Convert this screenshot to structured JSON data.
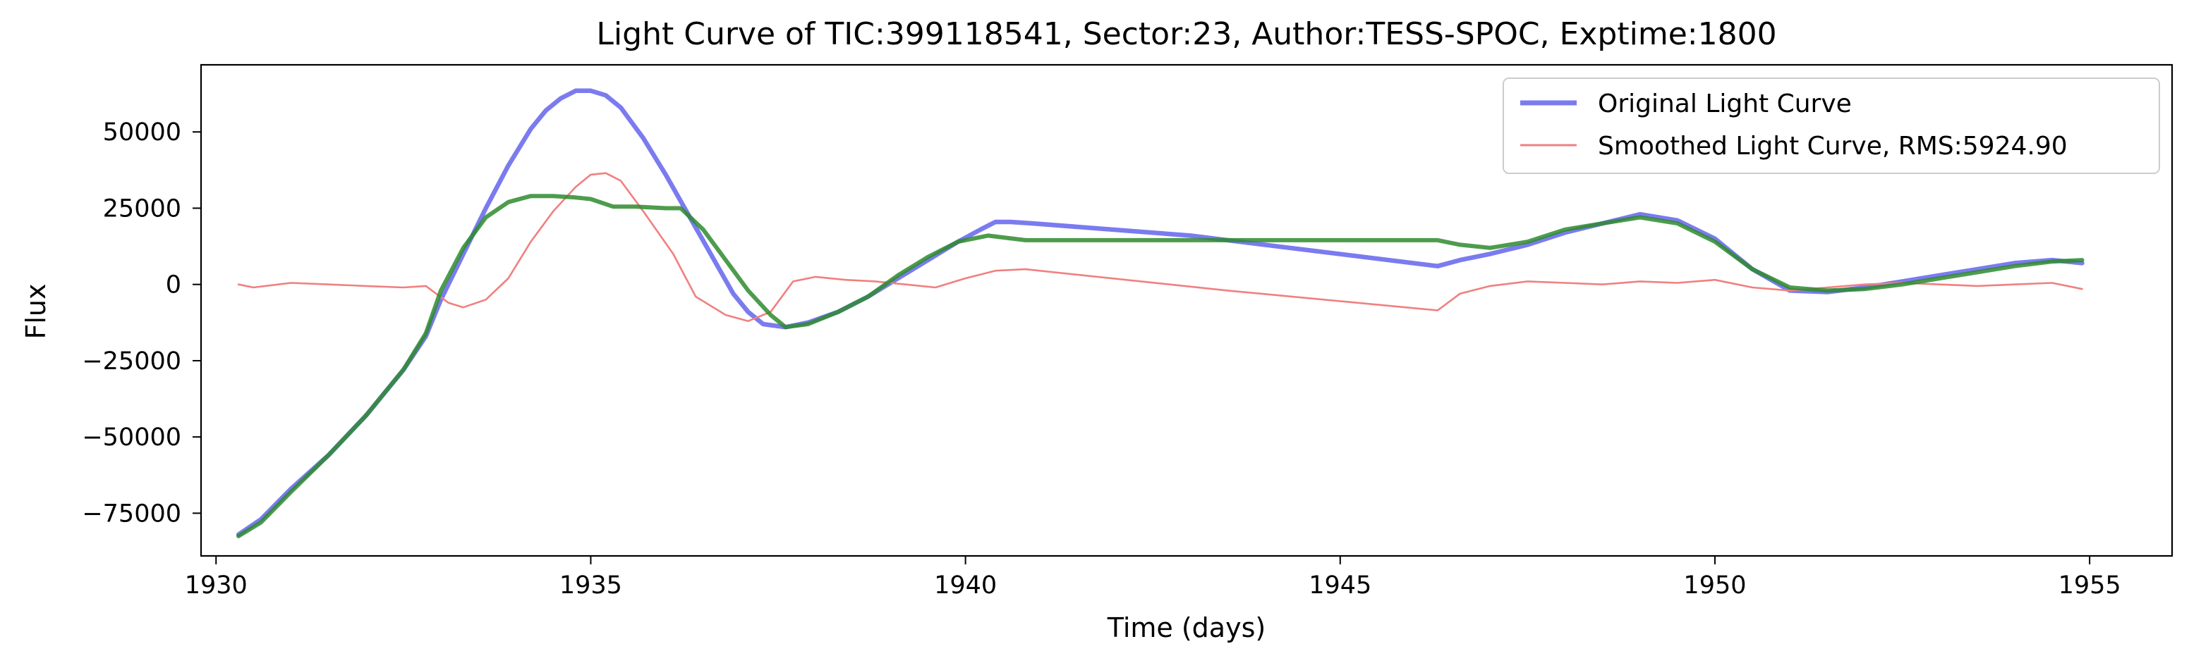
{
  "chart_data": {
    "type": "line",
    "title": "Light Curve of TIC:399118541, Sector:23, Author:TESS-SPOC, Exptime:1800",
    "xlabel": "Time (days)",
    "ylabel": "Flux",
    "xlim": [
      1929.8,
      1956.1
    ],
    "ylim": [
      -89000,
      72000
    ],
    "xticks": [
      1930,
      1935,
      1940,
      1945,
      1950,
      1955
    ],
    "yticks": [
      -75000,
      -50000,
      -25000,
      0,
      25000,
      50000
    ],
    "grid": false,
    "legend_position": "top-right",
    "series": [
      {
        "name": "Original Light Curve",
        "color": "#7b7bf0",
        "x": [
          1930.3,
          1930.6,
          1931.0,
          1931.5,
          1932.0,
          1932.5,
          1932.8,
          1933.0,
          1933.3,
          1933.6,
          1933.9,
          1934.2,
          1934.4,
          1934.6,
          1934.8,
          1935.0,
          1935.2,
          1935.4,
          1935.7,
          1936.0,
          1936.3,
          1936.6,
          1936.9,
          1937.1,
          1937.3,
          1937.6,
          1937.9,
          1938.3,
          1938.7,
          1939.1,
          1939.5,
          1939.9,
          1940.2,
          1940.4,
          1940.6,
          1940.9,
          1943.0,
          1946.3,
          1946.6,
          1947.0,
          1947.5,
          1948.0,
          1948.5,
          1949.0,
          1949.5,
          1950.0,
          1950.5,
          1951.0,
          1951.5,
          1952.0,
          1952.5,
          1953.0,
          1953.5,
          1954.0,
          1954.5,
          1954.9
        ],
        "values": [
          -82000,
          -77000,
          -67000,
          -56000,
          -43000,
          -28000,
          -17000,
          -5000,
          10000,
          25000,
          39000,
          51000,
          57000,
          61000,
          63500,
          63500,
          62000,
          58000,
          48000,
          36000,
          23000,
          10000,
          -3000,
          -9000,
          -13000,
          -14000,
          -12500,
          -9000,
          -4000,
          2000,
          8000,
          14000,
          18000,
          20500,
          20500,
          20000,
          16000,
          6000,
          8000,
          10000,
          13000,
          17000,
          20000,
          23000,
          21000,
          15000,
          5000,
          -2000,
          -2500,
          -1000,
          1000,
          3000,
          5000,
          7000,
          8000,
          7000
        ]
      },
      {
        "name": "Smoothed Light Curve, RMS:5924.90",
        "color": "#f08080",
        "x": [
          1930.3,
          1930.5,
          1931.0,
          1931.5,
          1932.0,
          1932.5,
          1932.8,
          1933.1,
          1933.3,
          1933.6,
          1933.9,
          1934.2,
          1934.5,
          1934.8,
          1935.0,
          1935.2,
          1935.4,
          1935.7,
          1936.1,
          1936.4,
          1936.8,
          1937.1,
          1937.4,
          1937.7,
          1938.0,
          1938.4,
          1938.8,
          1939.2,
          1939.6,
          1940.0,
          1940.4,
          1940.8,
          1943.5,
          1946.3,
          1946.6,
          1947.0,
          1947.5,
          1948.0,
          1948.5,
          1949.0,
          1949.5,
          1950.0,
          1950.5,
          1951.0,
          1951.5,
          1952.0,
          1952.5,
          1953.0,
          1953.5,
          1954.0,
          1954.5,
          1954.9
        ],
        "values": [
          0,
          -1000,
          500,
          0,
          -500,
          -1000,
          -500,
          -6000,
          -7500,
          -5000,
          2000,
          14000,
          24000,
          32000,
          36000,
          36500,
          34000,
          24000,
          10000,
          -4000,
          -10000,
          -12000,
          -9000,
          1000,
          2500,
          1500,
          1000,
          0,
          -1000,
          2000,
          4500,
          5000,
          -2000,
          -8500,
          -3000,
          -500,
          1000,
          500,
          0,
          1000,
          500,
          1500,
          -1000,
          -2000,
          -1000,
          0,
          500,
          0,
          -500,
          0,
          500,
          -1500
        ]
      },
      {
        "name": "",
        "color": "#2e8b2e",
        "x": [
          1930.3,
          1930.6,
          1931.0,
          1931.5,
          1932.0,
          1932.5,
          1932.8,
          1933.0,
          1933.3,
          1933.6,
          1933.9,
          1934.2,
          1934.5,
          1934.8,
          1935.0,
          1935.3,
          1935.6,
          1936.0,
          1936.2,
          1936.5,
          1936.8,
          1937.1,
          1937.4,
          1937.6,
          1937.9,
          1938.3,
          1938.7,
          1939.1,
          1939.5,
          1939.9,
          1940.3,
          1940.8,
          1943.0,
          1946.3,
          1946.6,
          1947.0,
          1947.5,
          1948.0,
          1948.5,
          1949.0,
          1949.5,
          1950.0,
          1950.5,
          1951.0,
          1951.5,
          1952.0,
          1952.5,
          1953.0,
          1953.5,
          1954.0,
          1954.5,
          1954.9
        ],
        "values": [
          -82500,
          -78000,
          -68000,
          -56000,
          -43000,
          -28000,
          -16000,
          -2000,
          12000,
          22000,
          27000,
          29000,
          29000,
          28500,
          28000,
          25500,
          25500,
          25000,
          25000,
          18000,
          8000,
          -2000,
          -10000,
          -14000,
          -13000,
          -9000,
          -4000,
          3000,
          9000,
          14000,
          16000,
          14500,
          14500,
          14500,
          13000,
          12000,
          14000,
          18000,
          20000,
          22000,
          20000,
          14000,
          5000,
          -1000,
          -2000,
          -1500,
          0,
          2000,
          4000,
          6000,
          7500,
          8000
        ]
      }
    ]
  }
}
